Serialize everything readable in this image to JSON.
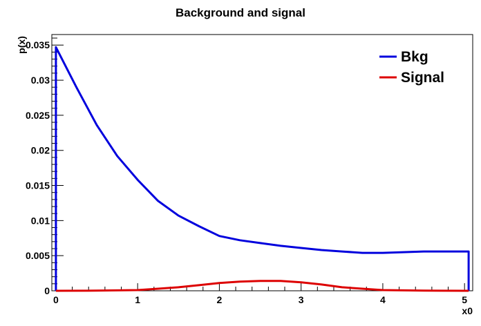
{
  "chart_data": {
    "type": "line",
    "title": "Background and signal",
    "xlabel": "x0",
    "ylabel": "p(x)",
    "xlim": [
      -0.05,
      5.1
    ],
    "ylim": [
      0,
      0.0365
    ],
    "x_ticks": [
      0,
      1,
      2,
      3,
      4,
      5
    ],
    "x_tick_labels": [
      "0",
      "1",
      "2",
      "3",
      "4",
      "5"
    ],
    "y_ticks": [
      0,
      0.005,
      0.01,
      0.015,
      0.02,
      0.025,
      0.03,
      0.035
    ],
    "y_tick_labels": [
      "0",
      "0.005",
      "0.01",
      "0.015",
      "0.02",
      "0.025",
      "0.03",
      "0.035"
    ],
    "grid": false,
    "legend_position": "top-right",
    "series": [
      {
        "name": "Bkg",
        "color": "#0000dd",
        "x": [
          0,
          0.25,
          0.5,
          0.75,
          1.0,
          1.25,
          1.5,
          1.75,
          2.0,
          2.25,
          2.5,
          2.75,
          3.0,
          3.25,
          3.5,
          3.75,
          4.0,
          4.25,
          4.5,
          4.75,
          5.0,
          5.05
        ],
        "y": [
          0.0347,
          0.029,
          0.0236,
          0.0192,
          0.0158,
          0.0128,
          0.0107,
          0.0092,
          0.0078,
          0.0072,
          0.0068,
          0.0064,
          0.0061,
          0.0058,
          0.0056,
          0.0054,
          0.0054,
          0.0055,
          0.0056,
          0.0056,
          0.0056,
          0.0056
        ]
      },
      {
        "name": "Signal",
        "color": "#dd0000",
        "x": [
          0,
          0.5,
          1.0,
          1.25,
          1.5,
          1.75,
          2.0,
          2.25,
          2.5,
          2.75,
          3.0,
          3.25,
          3.5,
          3.75,
          4.0,
          4.5,
          5.0,
          5.05
        ],
        "y": [
          0.0,
          2e-05,
          0.0001,
          0.0003,
          0.0005,
          0.0008,
          0.0011,
          0.0013,
          0.0014,
          0.0014,
          0.0012,
          0.0009,
          0.0005,
          0.0003,
          0.0001,
          2e-05,
          0.0,
          0.0
        ]
      }
    ]
  }
}
